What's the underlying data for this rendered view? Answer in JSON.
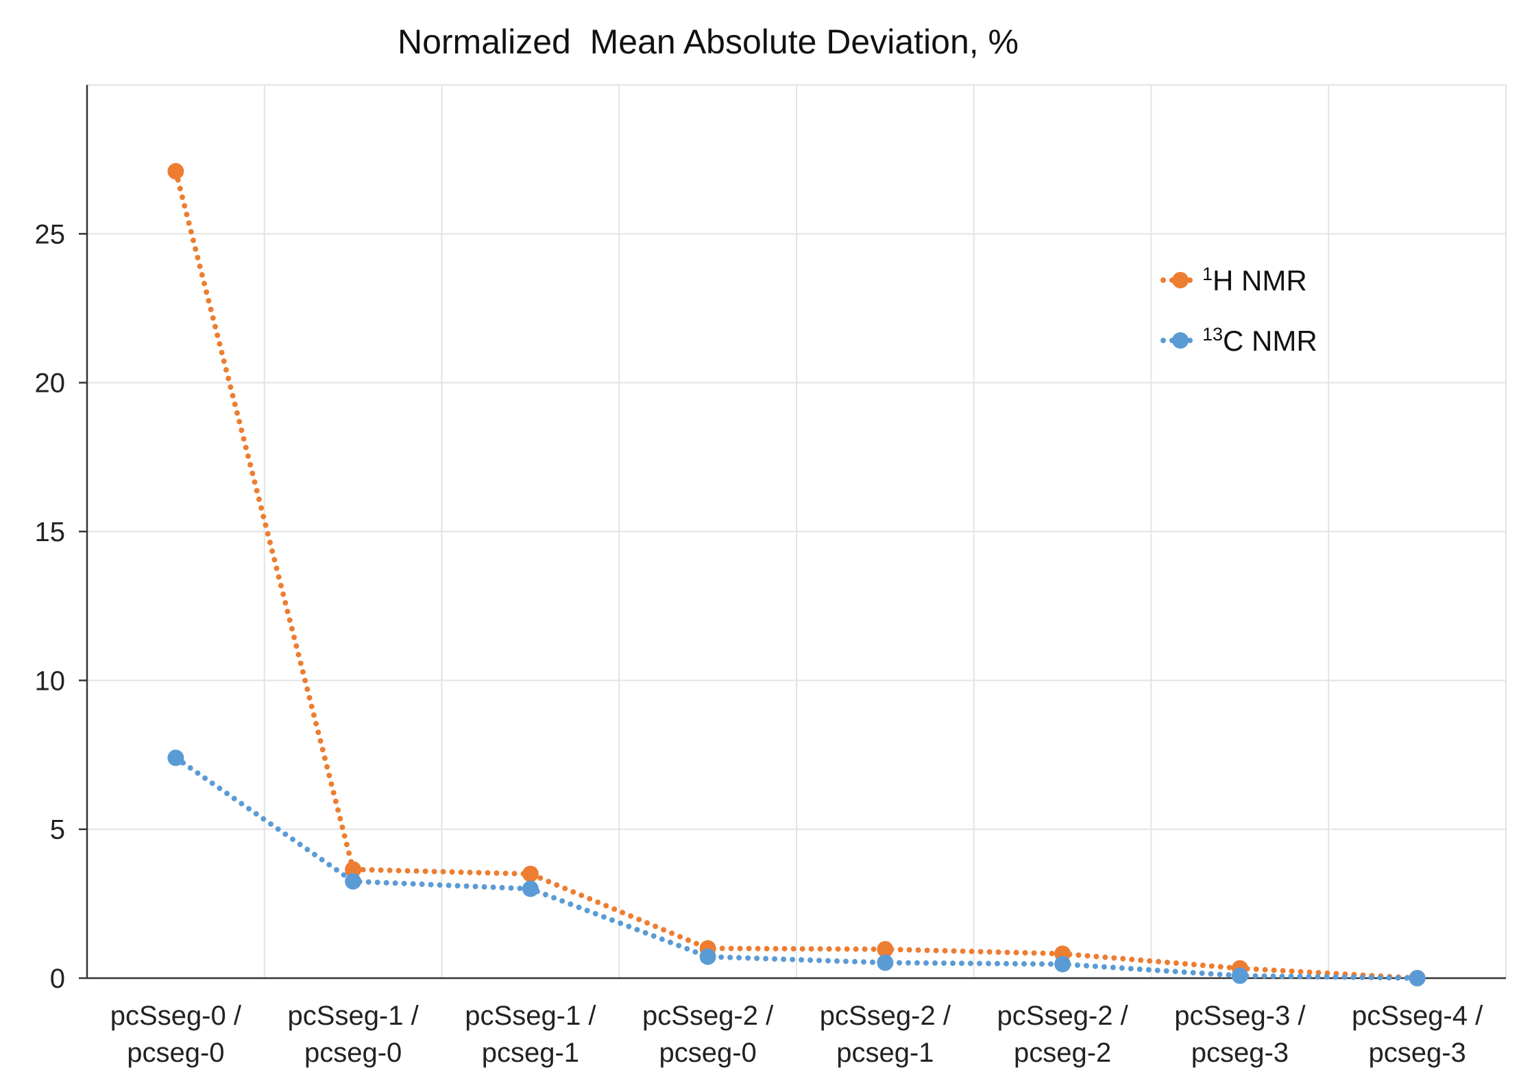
{
  "chart_data": {
    "type": "line",
    "title": "Normalized  Mean Absolute Deviation, %",
    "xlabel": "",
    "ylabel": "",
    "ylim": [
      0,
      30
    ],
    "yticks": [
      0,
      5,
      10,
      15,
      20,
      25
    ],
    "grid": true,
    "legend_position": "top-right",
    "categories": [
      [
        "pcSseg-0 /",
        "pcseg-0"
      ],
      [
        "pcSseg-1 /",
        "pcseg-0"
      ],
      [
        "pcSseg-1 /",
        "pcseg-1"
      ],
      [
        "pcSseg-2 /",
        "pcseg-0"
      ],
      [
        "pcSseg-2 /",
        "pcseg-1"
      ],
      [
        "pcSseg-2 /",
        "pcseg-2"
      ],
      [
        "pcSseg-3 /",
        "pcseg-3"
      ],
      [
        "pcSseg-4 /",
        "pcseg-3"
      ]
    ],
    "series": [
      {
        "name": "1H NMR",
        "label_sup": "1",
        "label_main": "H NMR",
        "color": "#ED7D31",
        "values": [
          27.1,
          3.65,
          3.5,
          1.0,
          0.97,
          0.82,
          0.33,
          0.0
        ]
      },
      {
        "name": "13C NMR",
        "label_sup": "13",
        "label_main": "C NMR",
        "color": "#5B9BD5",
        "values": [
          7.4,
          3.25,
          3.0,
          0.72,
          0.52,
          0.47,
          0.08,
          0.0
        ]
      }
    ],
    "colors": {
      "grid": "#e3e3e3",
      "axis": "#333333"
    }
  }
}
